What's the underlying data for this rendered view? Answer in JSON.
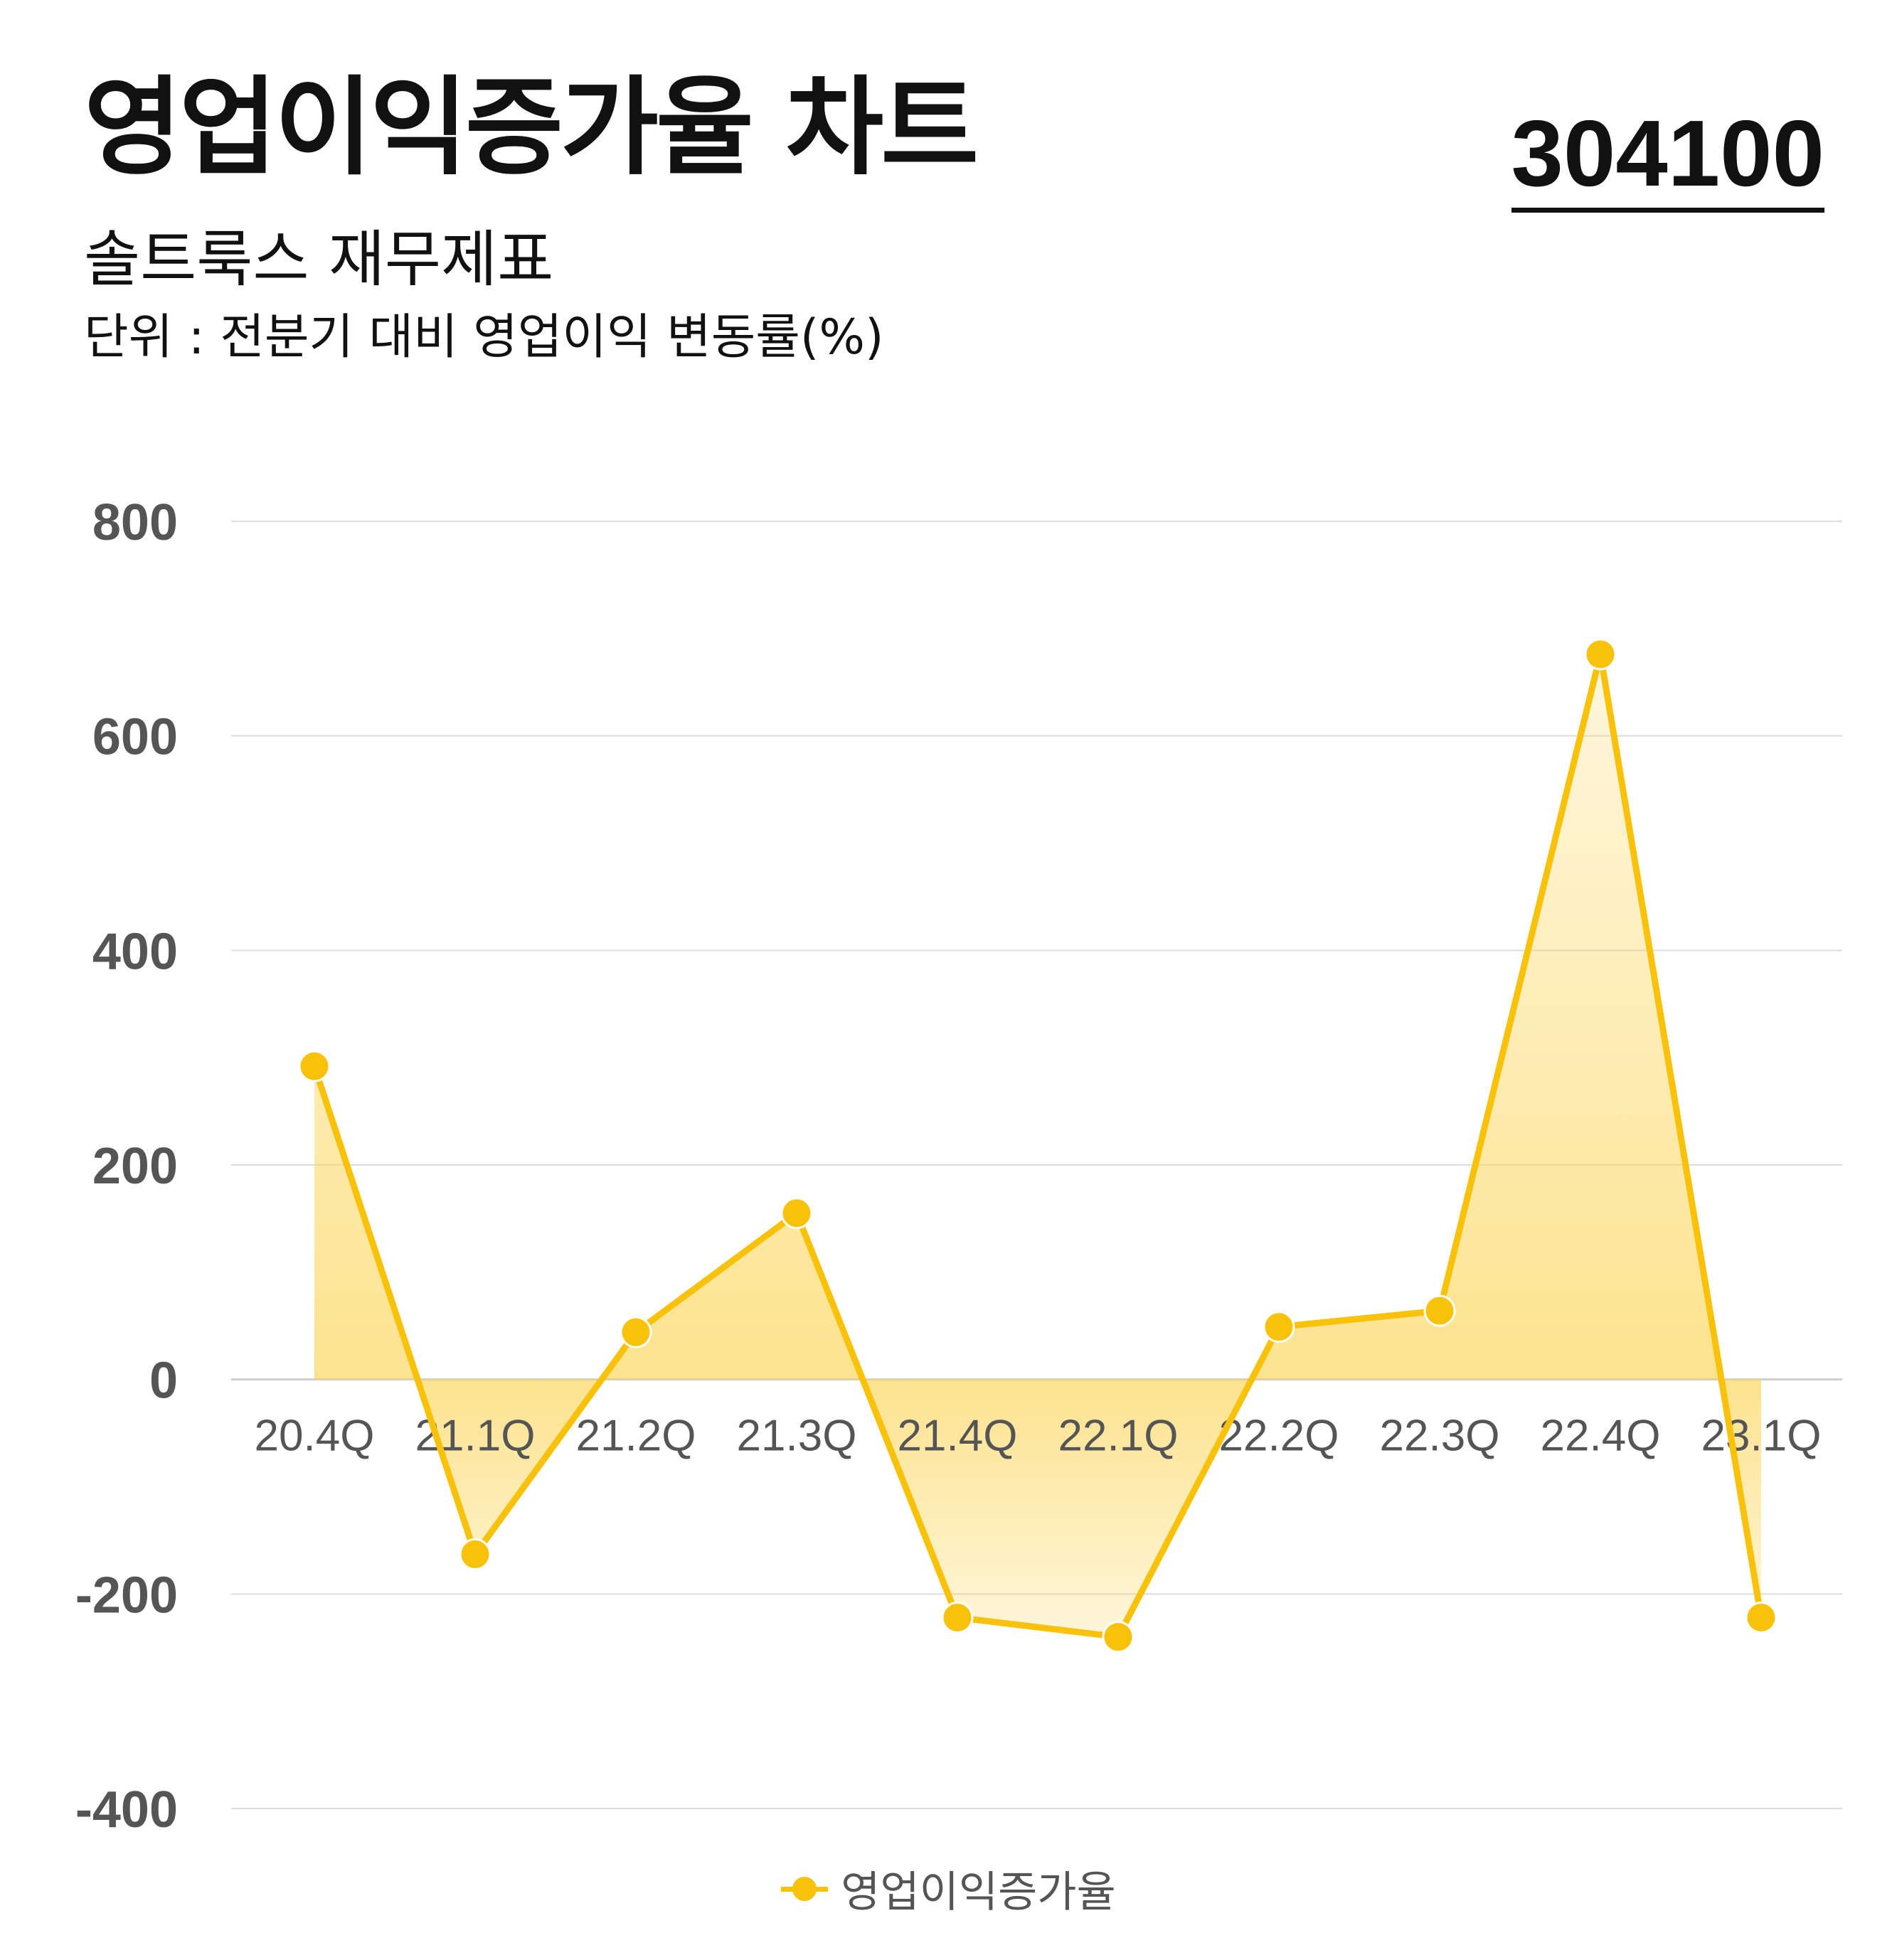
{
  "header": {
    "title": "영업이익증가율 차트",
    "code": "304100",
    "subtitle": "솔트룩스 재무제표",
    "unit": "단위 : 전분기 대비 영업이익 변동률(%)"
  },
  "colors": {
    "line": "#F8C10A",
    "area": "#FBD24A",
    "grid": "#DDDDDD",
    "tick_text": "#555555"
  },
  "chart_data": {
    "type": "area",
    "categories": [
      "20.4Q",
      "21.1Q",
      "21.2Q",
      "21.3Q",
      "21.4Q",
      "22.1Q",
      "22.2Q",
      "22.3Q",
      "22.4Q",
      "23.1Q"
    ],
    "series": [
      {
        "name": "영업이익증가율",
        "values": [
          292,
          -163,
          44,
          155,
          -222,
          -240,
          49,
          64,
          676,
          -222
        ]
      }
    ],
    "ylim": [
      -400,
      800
    ],
    "yticks": [
      "800",
      "600",
      "400",
      "200",
      "0",
      "-200",
      "-400"
    ],
    "grid": true,
    "legend_position": "bottom"
  },
  "legend": {
    "label": "영업이익증가율"
  }
}
